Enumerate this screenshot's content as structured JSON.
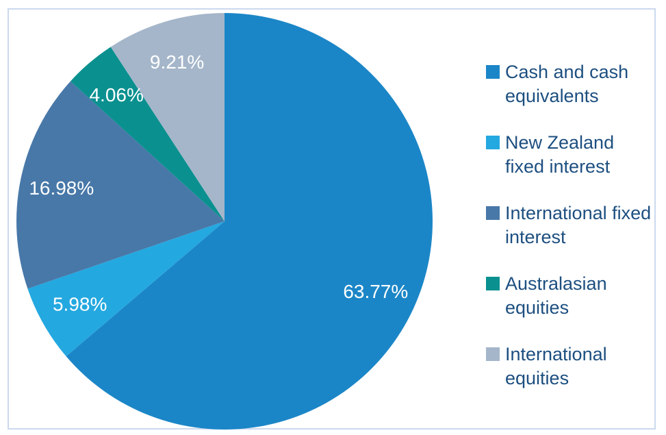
{
  "chart_data": {
    "type": "pie",
    "title": "",
    "legend_position": "right",
    "start_angle_deg": 0,
    "direction": "clockwise",
    "data_label_color": "#FFFFFF",
    "legend_text_color": "#1D4F80",
    "frame_border_color": "#CBD9EE",
    "slices": [
      {
        "label": "Cash and cash equivalents",
        "value": 63.77,
        "display": "63.77%",
        "color": "#1B86C7"
      },
      {
        "label": "New Zealand fixed interest",
        "value": 5.98,
        "display": "5.98%",
        "color": "#24A8E0"
      },
      {
        "label": "International fixed interest",
        "value": 16.98,
        "display": "16.98%",
        "color": "#4878A8"
      },
      {
        "label": "Australasian equities",
        "value": 4.06,
        "display": "4.06%",
        "color": "#0B9090"
      },
      {
        "label": "International equities",
        "value": 9.21,
        "display": "9.21%",
        "color": "#A5B6CA"
      }
    ]
  }
}
